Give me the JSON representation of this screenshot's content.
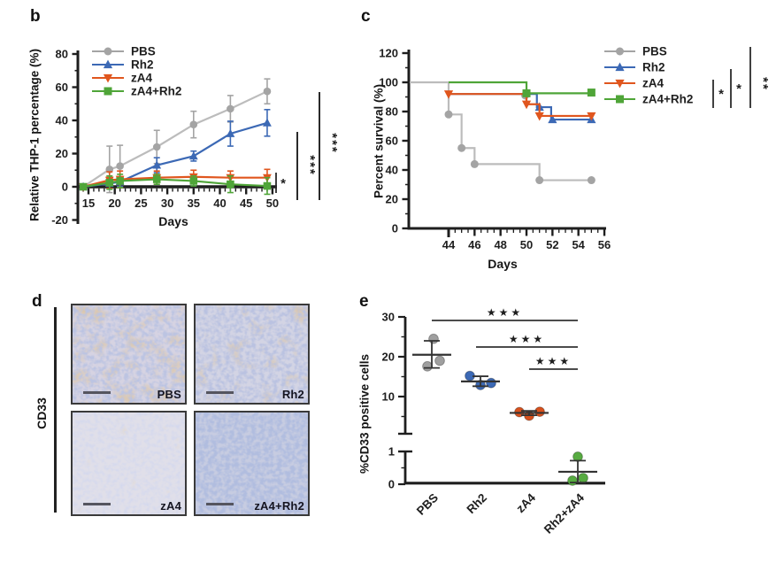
{
  "panel_labels": {
    "b": "b",
    "c": "c",
    "d": "d",
    "e": "e"
  },
  "colors": {
    "pbs": "#a4a4a4",
    "pbs_line": "#bcbcbc",
    "rh2": "#3c69b5",
    "za4": "#e0561e",
    "za4_rh2": "#4fa538",
    "axis": "#1e1e1e",
    "stat": "#2a2a2a"
  },
  "chart_data": [
    {
      "panel": "b",
      "type": "line",
      "ylabel": "Relative THP-1 percentage (%)",
      "xlabel": "Days",
      "ylim": [
        -20,
        80
      ],
      "yticks": [
        -20,
        0,
        20,
        40,
        60,
        80
      ],
      "xlim": [
        13,
        51
      ],
      "xticks": [
        15,
        20,
        25,
        30,
        35,
        40,
        45,
        50
      ],
      "x": [
        14,
        19,
        21,
        28,
        35,
        42,
        49
      ],
      "series": [
        {
          "name": "PBS",
          "color": "#a4a4a4",
          "marker": "circle",
          "values": [
            0,
            10.5,
            12.5,
            24,
            37.5,
            47,
            57.5
          ],
          "errors": [
            1.5,
            14,
            12.5,
            10,
            8,
            8,
            7.5
          ]
        },
        {
          "name": "Rh2",
          "color": "#3c69b5",
          "marker": "triangle-up",
          "values": [
            0,
            2,
            3,
            13,
            18.5,
            32,
            38.5
          ],
          "errors": [
            1.5,
            3,
            3,
            4.5,
            3,
            7.5,
            8
          ]
        },
        {
          "name": "zA4",
          "color": "#e0561e",
          "marker": "triangle-down",
          "values": [
            0,
            4,
            4.5,
            5.5,
            6,
            5.5,
            5.5
          ],
          "errors": [
            1.5,
            5,
            5,
            4,
            4,
            4,
            5
          ]
        },
        {
          "name": "zA4+Rh2",
          "color": "#4fa538",
          "marker": "square",
          "values": [
            0,
            2.5,
            3.5,
            4.5,
            3.5,
            1.5,
            0.5
          ],
          "errors": [
            1.5,
            4,
            4,
            3,
            3,
            5,
            5
          ]
        }
      ],
      "legend_position": "top-left",
      "significance": [
        {
          "stars": "*"
        },
        {
          "stars": "***"
        },
        {
          "stars": "***"
        }
      ]
    },
    {
      "panel": "c",
      "type": "step-survival",
      "ylabel": "Percent survival (%)",
      "xlabel": "Days",
      "ylim": [
        0,
        120
      ],
      "yticks": [
        0,
        20,
        40,
        60,
        80,
        100,
        120
      ],
      "xlim": [
        44,
        56
      ],
      "xticks": [
        44,
        46,
        48,
        50,
        52,
        54,
        56
      ],
      "series": [
        {
          "name": "PBS",
          "color": "#a4a4a4",
          "marker": "circle",
          "steps": [
            [
              41,
              100
            ],
            [
              44,
              100
            ],
            [
              44,
              78
            ],
            [
              45,
              78
            ],
            [
              45,
              55
            ],
            [
              46,
              55
            ],
            [
              46,
              44
            ],
            [
              51,
              44
            ],
            [
              51,
              33
            ],
            [
              55,
              33
            ]
          ],
          "markers": [
            [
              49.9,
              91
            ],
            [
              44,
              78
            ],
            [
              45,
              55
            ],
            [
              46,
              44
            ],
            [
              51,
              33
            ],
            [
              55,
              33
            ]
          ]
        },
        {
          "name": "Rh2",
          "color": "#3c69b5",
          "marker": "triangle-up",
          "steps": [
            [
              44,
              92
            ],
            [
              50.8,
              92
            ],
            [
              50.8,
              83
            ],
            [
              51.9,
              83
            ],
            [
              51.9,
              74.5
            ],
            [
              55,
              74.5
            ]
          ],
          "markers": [
            [
              51,
              83
            ],
            [
              52,
              74.5
            ],
            [
              55,
              74.5
            ]
          ]
        },
        {
          "name": "zA4",
          "color": "#e0561e",
          "marker": "triangle-down",
          "steps": [
            [
              44,
              92
            ],
            [
              50,
              92
            ],
            [
              50,
              85
            ],
            [
              51,
              85
            ],
            [
              51,
              77
            ],
            [
              55,
              77
            ]
          ],
          "markers": [
            [
              44,
              92
            ],
            [
              50,
              85
            ],
            [
              51,
              77
            ],
            [
              55,
              77
            ]
          ]
        },
        {
          "name": "zA4+Rh2",
          "color": "#4fa538",
          "marker": "square",
          "steps": [
            [
              44,
              100
            ],
            [
              50,
              100
            ],
            [
              50,
              92.5
            ],
            [
              55,
              92.5
            ]
          ],
          "markers": [
            [
              50,
              92.5
            ],
            [
              55,
              93
            ]
          ]
        }
      ],
      "legend_position": "right",
      "significance": [
        {
          "stars": "*"
        },
        {
          "stars": "*"
        },
        {
          "stars": "**"
        }
      ]
    },
    {
      "panel": "e",
      "type": "scatter",
      "ylabel": "%CD33 positive cells",
      "axis_break": true,
      "upper_ticks": [
        10,
        20,
        30
      ],
      "lower_ticks": [
        0,
        1
      ],
      "categories": [
        "PBS",
        "Rh2",
        "zA4",
        "Rh2+zA4"
      ],
      "groups": [
        {
          "name": "PBS",
          "color": "#9f9f9f",
          "axis": "upper",
          "values": [
            24.5,
            19,
            17.6
          ],
          "mean": 20.5,
          "sd_low": 17.2,
          "sd_high": 24
        },
        {
          "name": "Rh2",
          "color": "#3c69b5",
          "axis": "upper",
          "values": [
            15.2,
            13.4,
            12.9
          ],
          "mean": 13.8,
          "sd_low": 12.6,
          "sd_high": 15.1
        },
        {
          "name": "zA4",
          "color": "#d8511d",
          "axis": "upper",
          "values": [
            6.1,
            6.2,
            5.2
          ],
          "mean": 5.9,
          "sd_low": 5.3,
          "sd_high": 6.4
        },
        {
          "name": "Rh2+zA4",
          "color": "#57ab41",
          "axis": "lower",
          "values": [
            0.84,
            0.19,
            0.11
          ],
          "mean": 0.38,
          "sd_low": 0.05,
          "sd_high": 0.72
        }
      ],
      "significance": [
        {
          "stars": "***",
          "from": 0,
          "to": 3
        },
        {
          "stars": "***",
          "from": 1,
          "to": 3
        },
        {
          "stars": "***",
          "from": 2,
          "to": 3
        }
      ]
    }
  ],
  "panel_d": {
    "row_label": "CD33",
    "images": [
      {
        "label": "PBS"
      },
      {
        "label": "Rh2"
      },
      {
        "label": "zA4"
      },
      {
        "label": "zA4+Rh2"
      }
    ]
  }
}
